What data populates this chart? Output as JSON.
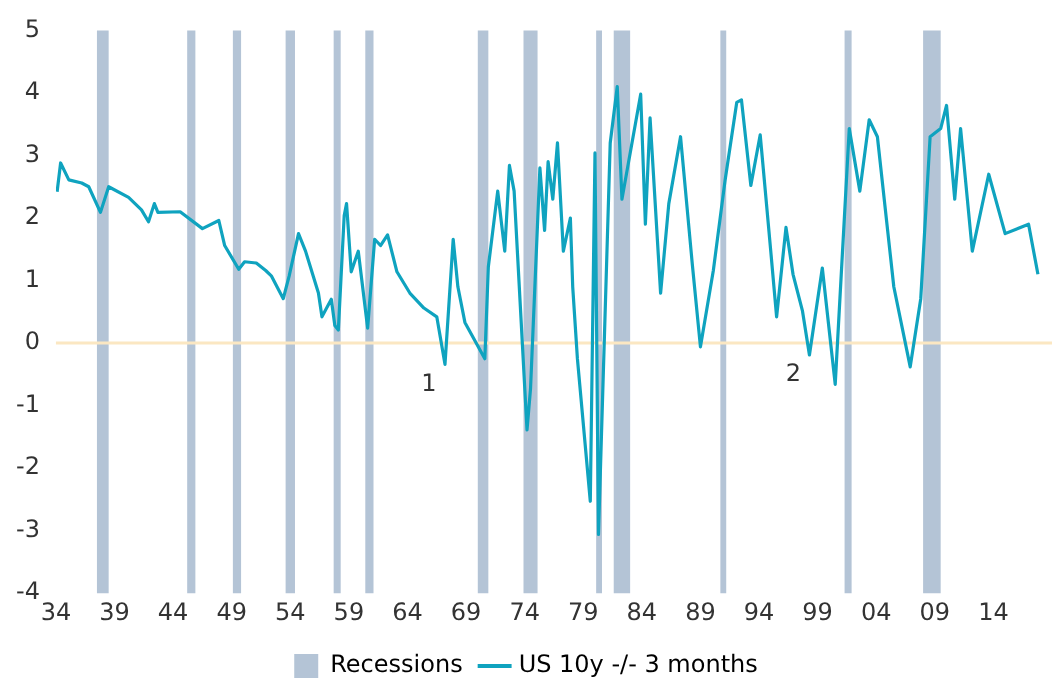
{
  "chart_data": {
    "type": "line",
    "x": [
      1934.1,
      1934.4,
      1935.1,
      1936.2,
      1936.8,
      1937.8,
      1938.5,
      1940.2,
      1941.3,
      1941.9,
      1942.4,
      1942.7,
      1944.6,
      1946.5,
      1947.9,
      1948.4,
      1949.6,
      1950.1,
      1951.1,
      1951.9,
      1952.4,
      1953.4,
      1953.9,
      1954.7,
      1955.3,
      1956.4,
      1956.7,
      1957.5,
      1957.8,
      1958.1,
      1958.6,
      1958.8,
      1959.2,
      1959.8,
      1960.6,
      1961.2,
      1961.7,
      1962.3,
      1963.1,
      1964.2,
      1965.4,
      1966.5,
      1967.2,
      1967.9,
      1968.3,
      1968.9,
      1970.6,
      1970.9,
      1971.7,
      1972.3,
      1972.7,
      1973.1,
      1974.2,
      1974.5,
      1975.3,
      1975.7,
      1976.0,
      1976.4,
      1976.8,
      1977.3,
      1977.9,
      1978.1,
      1978.5,
      1979.6,
      1980.0,
      1980.3,
      1981.3,
      1981.9,
      1982.3,
      1983.9,
      1984.3,
      1984.7,
      1985.6,
      1986.3,
      1987.3,
      1988.3,
      1989.0,
      1990.1,
      1991.1,
      1992.1,
      1992.5,
      1993.3,
      1994.1,
      1995.0,
      1995.5,
      1996.3,
      1996.9,
      1997.7,
      1998.3,
      1999.4,
      2000.5,
      2001.7,
      2002.6,
      2003.4,
      2004.1,
      2005.5,
      2006.9,
      2007.8,
      2008.6,
      2009.5,
      2010.0,
      2010.7,
      2011.2,
      2012.2,
      2013.6,
      2015.0,
      2017.0,
      2017.8
    ],
    "series": [
      {
        "name": "US 10y -/- 3 months",
        "color": "#0fa3bf",
        "values": [
          2.42,
          2.88,
          2.61,
          2.56,
          2.5,
          2.09,
          2.5,
          2.33,
          2.13,
          1.94,
          2.23,
          2.09,
          2.1,
          1.83,
          1.96,
          1.56,
          1.18,
          1.3,
          1.28,
          1.16,
          1.07,
          0.71,
          1.07,
          1.75,
          1.47,
          0.8,
          0.42,
          0.7,
          0.28,
          0.21,
          2.04,
          2.23,
          1.14,
          1.47,
          0.24,
          1.66,
          1.56,
          1.73,
          1.14,
          0.8,
          0.56,
          0.42,
          -0.34,
          1.66,
          0.9,
          0.33,
          -0.25,
          1.22,
          2.43,
          1.47,
          2.84,
          2.43,
          -1.39,
          -0.73,
          2.8,
          1.8,
          2.9,
          2.3,
          3.2,
          1.47,
          2.0,
          0.9,
          -0.25,
          -2.53,
          3.04,
          -3.06,
          3.2,
          4.1,
          2.3,
          3.98,
          1.9,
          3.6,
          0.8,
          2.23,
          3.3,
          1.27,
          -0.06,
          1.16,
          2.6,
          3.85,
          3.89,
          2.52,
          3.33,
          1.47,
          0.42,
          1.85,
          1.1,
          0.52,
          -0.19,
          1.2,
          -0.66,
          3.43,
          2.43,
          3.57,
          3.3,
          0.9,
          -0.38,
          0.71,
          3.3,
          3.43,
          3.8,
          2.3,
          3.43,
          1.47,
          2.7,
          1.75,
          1.9,
          1.1
        ]
      }
    ],
    "xlim": [
      1934,
      2019
    ],
    "xticks": [
      {
        "value": 1934,
        "label": "34"
      },
      {
        "value": 1939,
        "label": "39"
      },
      {
        "value": 1944,
        "label": "44"
      },
      {
        "value": 1949,
        "label": "49"
      },
      {
        "value": 1954,
        "label": "54"
      },
      {
        "value": 1959,
        "label": "59"
      },
      {
        "value": 1964,
        "label": "64"
      },
      {
        "value": 1969,
        "label": "69"
      },
      {
        "value": 1974,
        "label": "74"
      },
      {
        "value": 1979,
        "label": "79"
      },
      {
        "value": 1984,
        "label": "84"
      },
      {
        "value": 1989,
        "label": "89"
      },
      {
        "value": 1994,
        "label": "94"
      },
      {
        "value": 1999,
        "label": "99"
      },
      {
        "value": 2004,
        "label": "04"
      },
      {
        "value": 2009,
        "label": "09"
      },
      {
        "value": 2014,
        "label": "14"
      }
    ],
    "ylim": [
      -4,
      5
    ],
    "yticks": [
      -4,
      -3,
      -2,
      -1,
      0,
      1,
      2,
      3,
      4,
      5
    ],
    "bands": [
      {
        "axis": "x",
        "from": 1937.5,
        "to": 1938.5,
        "label": "Recessions",
        "color": "#b4c4d6"
      },
      {
        "axis": "x",
        "from": 1945.2,
        "to": 1945.9,
        "color": "#b4c4d6"
      },
      {
        "axis": "x",
        "from": 1949.1,
        "to": 1949.8,
        "color": "#b4c4d6"
      },
      {
        "axis": "x",
        "from": 1953.6,
        "to": 1954.4,
        "color": "#b4c4d6"
      },
      {
        "axis": "x",
        "from": 1957.7,
        "to": 1958.3,
        "color": "#b4c4d6"
      },
      {
        "axis": "x",
        "from": 1960.4,
        "to": 1961.1,
        "color": "#b4c4d6"
      },
      {
        "axis": "x",
        "from": 1970.0,
        "to": 1970.9,
        "color": "#b4c4d6"
      },
      {
        "axis": "x",
        "from": 1973.9,
        "to": 1975.1,
        "color": "#b4c4d6"
      },
      {
        "axis": "x",
        "from": 1980.1,
        "to": 1980.6,
        "color": "#b4c4d6"
      },
      {
        "axis": "x",
        "from": 1981.6,
        "to": 1983.0,
        "color": "#b4c4d6"
      },
      {
        "axis": "x",
        "from": 1990.7,
        "to": 1991.2,
        "color": "#b4c4d6"
      },
      {
        "axis": "x",
        "from": 2001.3,
        "to": 2001.9,
        "color": "#b4c4d6"
      },
      {
        "axis": "x",
        "from": 2008.0,
        "to": 2009.5,
        "color": "#b4c4d6"
      }
    ],
    "ref_lines": [
      {
        "axis": "y",
        "value": 0,
        "color": "#fbe7c2"
      }
    ],
    "annotations": [
      {
        "text": "1",
        "x": 1967.2,
        "y": -0.34
      },
      {
        "text": "2",
        "x": 1998.3,
        "y": -0.19
      }
    ],
    "legend": "bottom",
    "grid": false,
    "marker": "none",
    "line_style": "solid"
  }
}
